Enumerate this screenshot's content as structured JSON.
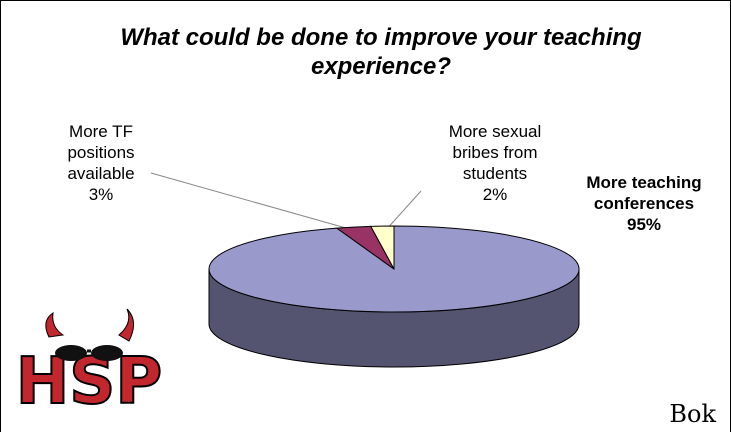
{
  "chart_data": {
    "type": "pie3d",
    "title": "What could be done to improve your teaching experience?",
    "categories": [
      "More teaching conferences",
      "More TF positions available",
      "More sexual bribes from students"
    ],
    "values": [
      95,
      3,
      2
    ],
    "value_labels": [
      "95%",
      "3%",
      "2%"
    ],
    "colors": [
      "#9999cc",
      "#993366",
      "#ffffcc"
    ]
  },
  "logo": "HSP",
  "signature": "Bok"
}
